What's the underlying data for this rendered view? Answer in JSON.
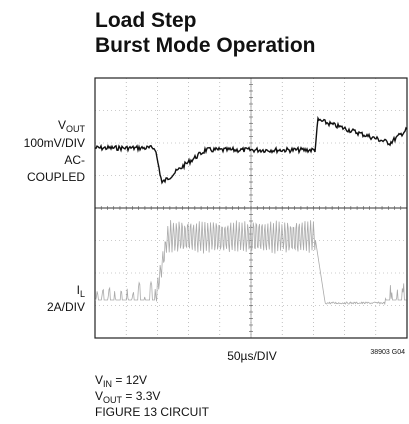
{
  "title": {
    "line1": "Load Step",
    "line2": "Burst Mode Operation"
  },
  "vout_label": {
    "main": "V",
    "sub": "OUT",
    "scale": "100mV/DIV",
    "coupling1": "AC-",
    "coupling2": "COUPLED"
  },
  "il_label": {
    "main": "I",
    "sub": "L",
    "scale": "2A/DIV"
  },
  "time_label": "50µs/DIV",
  "figure_id": "38903 G04",
  "conditions": {
    "vin": {
      "main": "V",
      "sub": "IN",
      "rest": " = 12V"
    },
    "vout": {
      "main": "V",
      "sub": "OUT",
      "rest": " = 3.3V"
    },
    "circuit": "FIGURE 13 CIRCUIT"
  }
}
